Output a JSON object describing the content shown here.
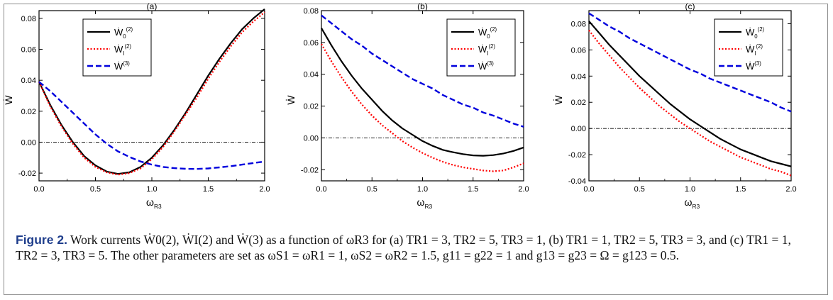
{
  "figure": {
    "caption_label": "Figure 2.",
    "caption_text": "Work currents Ẇ0(2), ẆI(2) and Ẇ(3) as a function of ωR3 for (a) TR1 = 3, TR2 = 5, TR3 = 1, (b) TR1 = 1, TR2 = 5, TR3 = 3, and (c) TR1 = 1, TR2 = 3, TR3 = 5. The other parameters are set as ωS1 = ωR1 = 1, ωS2 = ωR2 = 1.5, g11 = g22 = 1 and g13 = g23 = Ω = g123 = 0.5."
  },
  "colors": {
    "w0": "#000000",
    "w1": "#ff0000",
    "w3": "#0000dd",
    "zero_line": "#000000"
  },
  "chart_data": [
    {
      "type": "line",
      "title": "(a)",
      "xlabel": "ωR3",
      "ylabel": "Ẇ",
      "xlim": [
        0,
        2
      ],
      "ylim": [
        -0.025,
        0.085
      ],
      "xticks": [
        "0.0",
        "0.5",
        "1.0",
        "1.5",
        "2.0"
      ],
      "yticks": [
        "-0.02",
        "0.00",
        "0.02",
        "0.04",
        "0.06",
        "0.08"
      ],
      "legend_position": "top-left",
      "x": [
        0,
        0.1,
        0.2,
        0.3,
        0.4,
        0.5,
        0.6,
        0.7,
        0.8,
        0.9,
        1.0,
        1.1,
        1.2,
        1.3,
        1.4,
        1.5,
        1.6,
        1.7,
        1.8,
        1.9,
        2.0
      ],
      "series": [
        {
          "name": "Ẇ0(2)",
          "values": [
            0.039,
            0.024,
            0.011,
            0.0,
            -0.009,
            -0.015,
            -0.019,
            -0.0205,
            -0.0195,
            -0.016,
            -0.01,
            -0.002,
            0.008,
            0.019,
            0.031,
            0.043,
            0.054,
            0.064,
            0.073,
            0.08,
            0.086
          ]
        },
        {
          "name": "ẆI(2)",
          "values": [
            0.039,
            0.023,
            0.01,
            -0.001,
            -0.01,
            -0.016,
            -0.0195,
            -0.021,
            -0.02,
            -0.017,
            -0.011,
            -0.003,
            0.007,
            0.018,
            0.029,
            0.041,
            0.052,
            0.062,
            0.071,
            0.078,
            0.084
          ]
        },
        {
          "name": "Ẇ(3)",
          "values": [
            0.039,
            0.033,
            0.026,
            0.019,
            0.012,
            0.005,
            -0.001,
            -0.006,
            -0.0095,
            -0.0125,
            -0.0145,
            -0.016,
            -0.0168,
            -0.0172,
            -0.0173,
            -0.017,
            -0.0163,
            -0.0155,
            -0.0145,
            -0.0135,
            -0.0125
          ]
        }
      ]
    },
    {
      "type": "line",
      "title": "(b)",
      "xlabel": "ωR3",
      "ylabel": "Ẇ",
      "xlim": [
        0,
        2
      ],
      "ylim": [
        -0.027,
        0.08
      ],
      "xticks": [
        "0.0",
        "0.5",
        "1.0",
        "1.5",
        "2.0"
      ],
      "yticks": [
        "-0.02",
        "0.00",
        "0.02",
        "0.04",
        "0.06",
        "0.08"
      ],
      "legend_position": "top-right",
      "x": [
        0,
        0.1,
        0.2,
        0.3,
        0.4,
        0.5,
        0.6,
        0.7,
        0.8,
        0.9,
        1.0,
        1.1,
        1.2,
        1.3,
        1.4,
        1.5,
        1.6,
        1.7,
        1.8,
        1.9,
        2.0
      ],
      "series": [
        {
          "name": "Ẇ0(2)",
          "values": [
            0.069,
            0.058,
            0.048,
            0.039,
            0.031,
            0.024,
            0.017,
            0.011,
            0.006,
            0.002,
            -0.002,
            -0.005,
            -0.0075,
            -0.009,
            -0.0102,
            -0.011,
            -0.0112,
            -0.0108,
            -0.0098,
            -0.0082,
            -0.006
          ]
        },
        {
          "name": "ẆI(2)",
          "values": [
            0.059,
            0.048,
            0.038,
            0.029,
            0.021,
            0.014,
            0.008,
            0.003,
            -0.002,
            -0.006,
            -0.0095,
            -0.0125,
            -0.015,
            -0.017,
            -0.0185,
            -0.0195,
            -0.0205,
            -0.021,
            -0.0205,
            -0.0185,
            -0.016
          ]
        },
        {
          "name": "Ẇ(3)",
          "values": [
            0.077,
            0.072,
            0.067,
            0.062,
            0.058,
            0.053,
            0.049,
            0.045,
            0.041,
            0.037,
            0.034,
            0.031,
            0.027,
            0.024,
            0.021,
            0.019,
            0.016,
            0.014,
            0.0115,
            0.009,
            0.007
          ]
        }
      ]
    },
    {
      "type": "line",
      "title": "(c)",
      "xlabel": "ωR3",
      "ylabel": "Ẇ",
      "xlim": [
        0,
        2
      ],
      "ylim": [
        -0.04,
        0.09
      ],
      "xticks": [
        "0.0",
        "0.5",
        "1.0",
        "1.5",
        "2.0"
      ],
      "yticks": [
        "-0.04",
        "-0.02",
        "0.00",
        "0.02",
        "0.04",
        "0.06",
        "0.08"
      ],
      "legend_position": "top-right",
      "x": [
        0,
        0.1,
        0.2,
        0.3,
        0.4,
        0.5,
        0.6,
        0.7,
        0.8,
        0.9,
        1.0,
        1.1,
        1.2,
        1.3,
        1.4,
        1.5,
        1.6,
        1.7,
        1.8,
        1.9,
        2.0
      ],
      "series": [
        {
          "name": "Ẇ0(2)",
          "values": [
            0.082,
            0.073,
            0.064,
            0.056,
            0.048,
            0.04,
            0.033,
            0.026,
            0.019,
            0.013,
            0.007,
            0.002,
            -0.003,
            -0.008,
            -0.012,
            -0.016,
            -0.019,
            -0.022,
            -0.025,
            -0.027,
            -0.029
          ]
        },
        {
          "name": "ẆI(2)",
          "values": [
            0.075,
            0.065,
            0.056,
            0.047,
            0.039,
            0.031,
            0.024,
            0.017,
            0.011,
            0.005,
            0.0,
            -0.005,
            -0.01,
            -0.014,
            -0.018,
            -0.022,
            -0.025,
            -0.028,
            -0.031,
            -0.033,
            -0.036
          ]
        },
        {
          "name": "Ẇ(3)",
          "values": [
            0.088,
            0.083,
            0.078,
            0.074,
            0.069,
            0.065,
            0.061,
            0.057,
            0.053,
            0.049,
            0.045,
            0.042,
            0.038,
            0.035,
            0.032,
            0.029,
            0.026,
            0.023,
            0.02,
            0.016,
            0.013
          ]
        }
      ]
    }
  ]
}
